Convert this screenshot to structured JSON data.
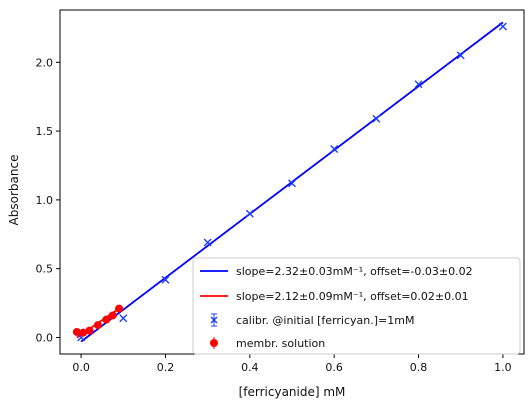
{
  "chart_data": {
    "type": "scatter",
    "title": "",
    "xlabel": "[ferricyanide] mM",
    "ylabel": "Absorbance",
    "xlim": [
      -0.05,
      1.05
    ],
    "ylim": [
      -0.12,
      2.38
    ],
    "grid": false,
    "legend_position": "lower-right",
    "x_ticks": [
      0.0,
      0.2,
      0.4,
      0.6,
      0.8,
      1.0
    ],
    "x_tick_labels": [
      "0.0",
      "0.2",
      "0.4",
      "0.6",
      "0.8",
      "1.0"
    ],
    "y_ticks": [
      0.0,
      0.5,
      1.0,
      1.5,
      2.0
    ],
    "y_tick_labels": [
      "0.0",
      "0.5",
      "1.0",
      "1.5",
      "2.0"
    ],
    "series": [
      {
        "name": "calibr. @initial [ferricyan.]=1mM",
        "type": "scatter",
        "marker": "x-errorbar",
        "color": "#1f3fff",
        "x": [
          0.0,
          0.1,
          0.2,
          0.3,
          0.4,
          0.5,
          0.6,
          0.7,
          0.8,
          0.9,
          1.0
        ],
        "y": [
          0.0,
          0.14,
          0.42,
          0.69,
          0.9,
          1.12,
          1.37,
          1.59,
          1.84,
          2.05,
          2.26
        ]
      },
      {
        "name": "membr. solution",
        "type": "scatter",
        "marker": "dot-errorbar",
        "color": "#ff0000",
        "x": [
          -0.01,
          0.005,
          0.02,
          0.04,
          0.06,
          0.075,
          0.09
        ],
        "y": [
          0.04,
          0.035,
          0.05,
          0.09,
          0.13,
          0.16,
          0.21
        ]
      },
      {
        "name": "slope=2.32±0.03mM⁻¹, offset=-0.03±0.02",
        "type": "line",
        "color": "#0000ff",
        "x": [
          0.0,
          1.0
        ],
        "y": [
          -0.03,
          2.29
        ]
      },
      {
        "name": "slope=2.12±0.09mM⁻¹, offset=0.02±0.01",
        "type": "line",
        "color": "#ff0000",
        "x": [
          -0.01,
          0.09
        ],
        "y": [
          -0.001,
          0.211
        ]
      }
    ],
    "legend": [
      {
        "label": "slope=2.32±0.03mM⁻¹, offset=-0.03±0.02",
        "kind": "line",
        "color": "#0000ff"
      },
      {
        "label": "slope=2.12±0.09mM⁻¹, offset=0.02±0.01",
        "kind": "line",
        "color": "#ff0000"
      },
      {
        "label": "calibr. @initial [ferricyan.]=1mM",
        "kind": "x-errorbar",
        "color": "#1f3fff"
      },
      {
        "label": "membr. solution",
        "kind": "dot-errorbar",
        "color": "#ff0000"
      }
    ]
  }
}
